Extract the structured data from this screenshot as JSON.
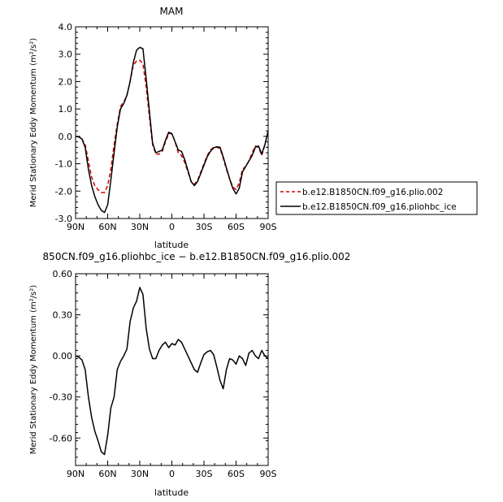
{
  "chart_data": [
    {
      "type": "line",
      "title": "MAM",
      "xlabel": "latitude",
      "ylabel": "Merid Stationary Eddy Momentum  (m²/s²)",
      "xlim": [
        90,
        -90
      ],
      "ylim": [
        -3.0,
        4.0
      ],
      "x_ticks": [
        90,
        60,
        30,
        0,
        -30,
        -60,
        -90
      ],
      "x_tick_labels": [
        "90N",
        "60N",
        "30N",
        "0",
        "30S",
        "60S",
        "90S"
      ],
      "y_ticks": [
        -3,
        -2,
        -1,
        0,
        1,
        2,
        3,
        4
      ],
      "y_tick_labels": [
        "-3.0",
        "-2.0",
        "-1.0",
        "0.0",
        "1.0",
        "2.0",
        "3.0",
        "4.0"
      ],
      "legend": "right",
      "series": [
        {
          "name": "b.e12.B1850CN.f09_g16.plio.002",
          "color": "#d40000",
          "dash": "dashed",
          "x": [
            90,
            87,
            84,
            81,
            78,
            75,
            72,
            69,
            66,
            63,
            60,
            57,
            54,
            51,
            48,
            45,
            42,
            39,
            36,
            33,
            30,
            27,
            24,
            21,
            18,
            15,
            12,
            9,
            6,
            3,
            0,
            -3,
            -6,
            -9,
            -12,
            -15,
            -18,
            -21,
            -24,
            -27,
            -30,
            -33,
            -36,
            -39,
            -42,
            -45,
            -48,
            -51,
            -54,
            -57,
            -60,
            -63,
            -66,
            -69,
            -72,
            -75,
            -78,
            -81,
            -84,
            -87,
            -90
          ],
          "y": [
            0.0,
            -0.02,
            -0.1,
            -0.3,
            -0.9,
            -1.5,
            -1.8,
            -1.95,
            -2.05,
            -2.05,
            -1.8,
            -1.2,
            -0.3,
            0.45,
            1.1,
            1.25,
            1.5,
            2.0,
            2.6,
            2.75,
            2.78,
            2.65,
            1.8,
            0.7,
            -0.3,
            -0.65,
            -0.65,
            -0.55,
            -0.2,
            0.1,
            0.1,
            -0.2,
            -0.6,
            -0.7,
            -0.95,
            -1.3,
            -1.65,
            -1.75,
            -1.6,
            -1.3,
            -1.0,
            -0.7,
            -0.5,
            -0.4,
            -0.4,
            -0.45,
            -0.8,
            -1.2,
            -1.55,
            -1.85,
            -1.95,
            -1.7,
            -1.2,
            -1.1,
            -0.9,
            -0.6,
            -0.35,
            -0.4,
            -0.7,
            -0.3,
            0.2
          ]
        },
        {
          "name": "b.e12.B1850CN.f09_g16.pliohbc_ice",
          "color": "#000000",
          "dash": "solid",
          "x": [
            90,
            87,
            84,
            81,
            78,
            75,
            72,
            69,
            66,
            63,
            60,
            57,
            54,
            51,
            48,
            45,
            42,
            39,
            36,
            33,
            30,
            27,
            24,
            21,
            18,
            15,
            12,
            9,
            6,
            3,
            0,
            -3,
            -6,
            -9,
            -12,
            -15,
            -18,
            -21,
            -24,
            -27,
            -30,
            -33,
            -36,
            -39,
            -42,
            -45,
            -48,
            -51,
            -54,
            -57,
            -60,
            -63,
            -66,
            -69,
            -72,
            -75,
            -78,
            -81,
            -84,
            -87,
            -90
          ],
          "y": [
            0.0,
            -0.02,
            -0.1,
            -0.4,
            -1.2,
            -1.8,
            -2.2,
            -2.5,
            -2.7,
            -2.78,
            -2.5,
            -1.6,
            -0.6,
            0.35,
            1.0,
            1.2,
            1.5,
            2.0,
            2.7,
            3.15,
            3.25,
            3.2,
            2.1,
            0.9,
            -0.25,
            -0.6,
            -0.55,
            -0.5,
            -0.15,
            0.15,
            0.1,
            -0.2,
            -0.5,
            -0.55,
            -0.85,
            -1.25,
            -1.65,
            -1.8,
            -1.65,
            -1.35,
            -1.05,
            -0.75,
            -0.55,
            -0.42,
            -0.38,
            -0.4,
            -0.75,
            -1.15,
            -1.55,
            -1.9,
            -2.1,
            -1.9,
            -1.3,
            -1.1,
            -0.9,
            -0.7,
            -0.4,
            -0.35,
            -0.65,
            -0.3,
            0.2
          ]
        }
      ]
    },
    {
      "type": "line",
      "title": "850CN.f09_g16.pliohbc_ice − b.e12.B1850CN.f09_g16.plio.002",
      "xlabel": "latitude",
      "ylabel": "Merid Stationary Eddy Momentum  (m²/s²)",
      "xlim": [
        90,
        -90
      ],
      "ylim": [
        -0.8,
        0.6
      ],
      "x_ticks": [
        90,
        60,
        30,
        0,
        -30,
        -60,
        -90
      ],
      "x_tick_labels": [
        "90N",
        "60N",
        "30N",
        "0",
        "30S",
        "60S",
        "90S"
      ],
      "y_ticks": [
        -0.6,
        -0.3,
        0.0,
        0.3,
        0.6
      ],
      "y_tick_labels": [
        "-0.60",
        "-0.30",
        "0.00",
        "0.30",
        "0.60"
      ],
      "series": [
        {
          "color": "#000000",
          "x": [
            90,
            87,
            84,
            81,
            78,
            75,
            72,
            69,
            66,
            63,
            60,
            57,
            54,
            51,
            48,
            45,
            42,
            39,
            36,
            33,
            30,
            27,
            24,
            21,
            18,
            15,
            12,
            9,
            6,
            3,
            0,
            -3,
            -6,
            -9,
            -12,
            -15,
            -18,
            -21,
            -24,
            -27,
            -30,
            -33,
            -36,
            -39,
            -42,
            -45,
            -48,
            -51,
            -54,
            -57,
            -60,
            -63,
            -66,
            -69,
            -72,
            -75,
            -78,
            -81,
            -84,
            -87,
            -90
          ],
          "y": [
            0.0,
            -0.01,
            -0.03,
            -0.1,
            -0.3,
            -0.45,
            -0.55,
            -0.62,
            -0.7,
            -0.72,
            -0.58,
            -0.38,
            -0.3,
            -0.1,
            -0.04,
            0.0,
            0.05,
            0.25,
            0.35,
            0.4,
            0.5,
            0.45,
            0.2,
            0.05,
            -0.02,
            -0.02,
            0.04,
            0.08,
            0.1,
            0.06,
            0.09,
            0.08,
            0.12,
            0.1,
            0.05,
            0.0,
            -0.05,
            -0.1,
            -0.12,
            -0.05,
            0.01,
            0.03,
            0.04,
            0.01,
            -0.08,
            -0.18,
            -0.24,
            -0.1,
            -0.02,
            -0.03,
            -0.06,
            0.0,
            -0.02,
            -0.07,
            0.02,
            0.04,
            0.0,
            -0.02,
            0.04,
            0.0,
            -0.02
          ]
        }
      ]
    }
  ]
}
